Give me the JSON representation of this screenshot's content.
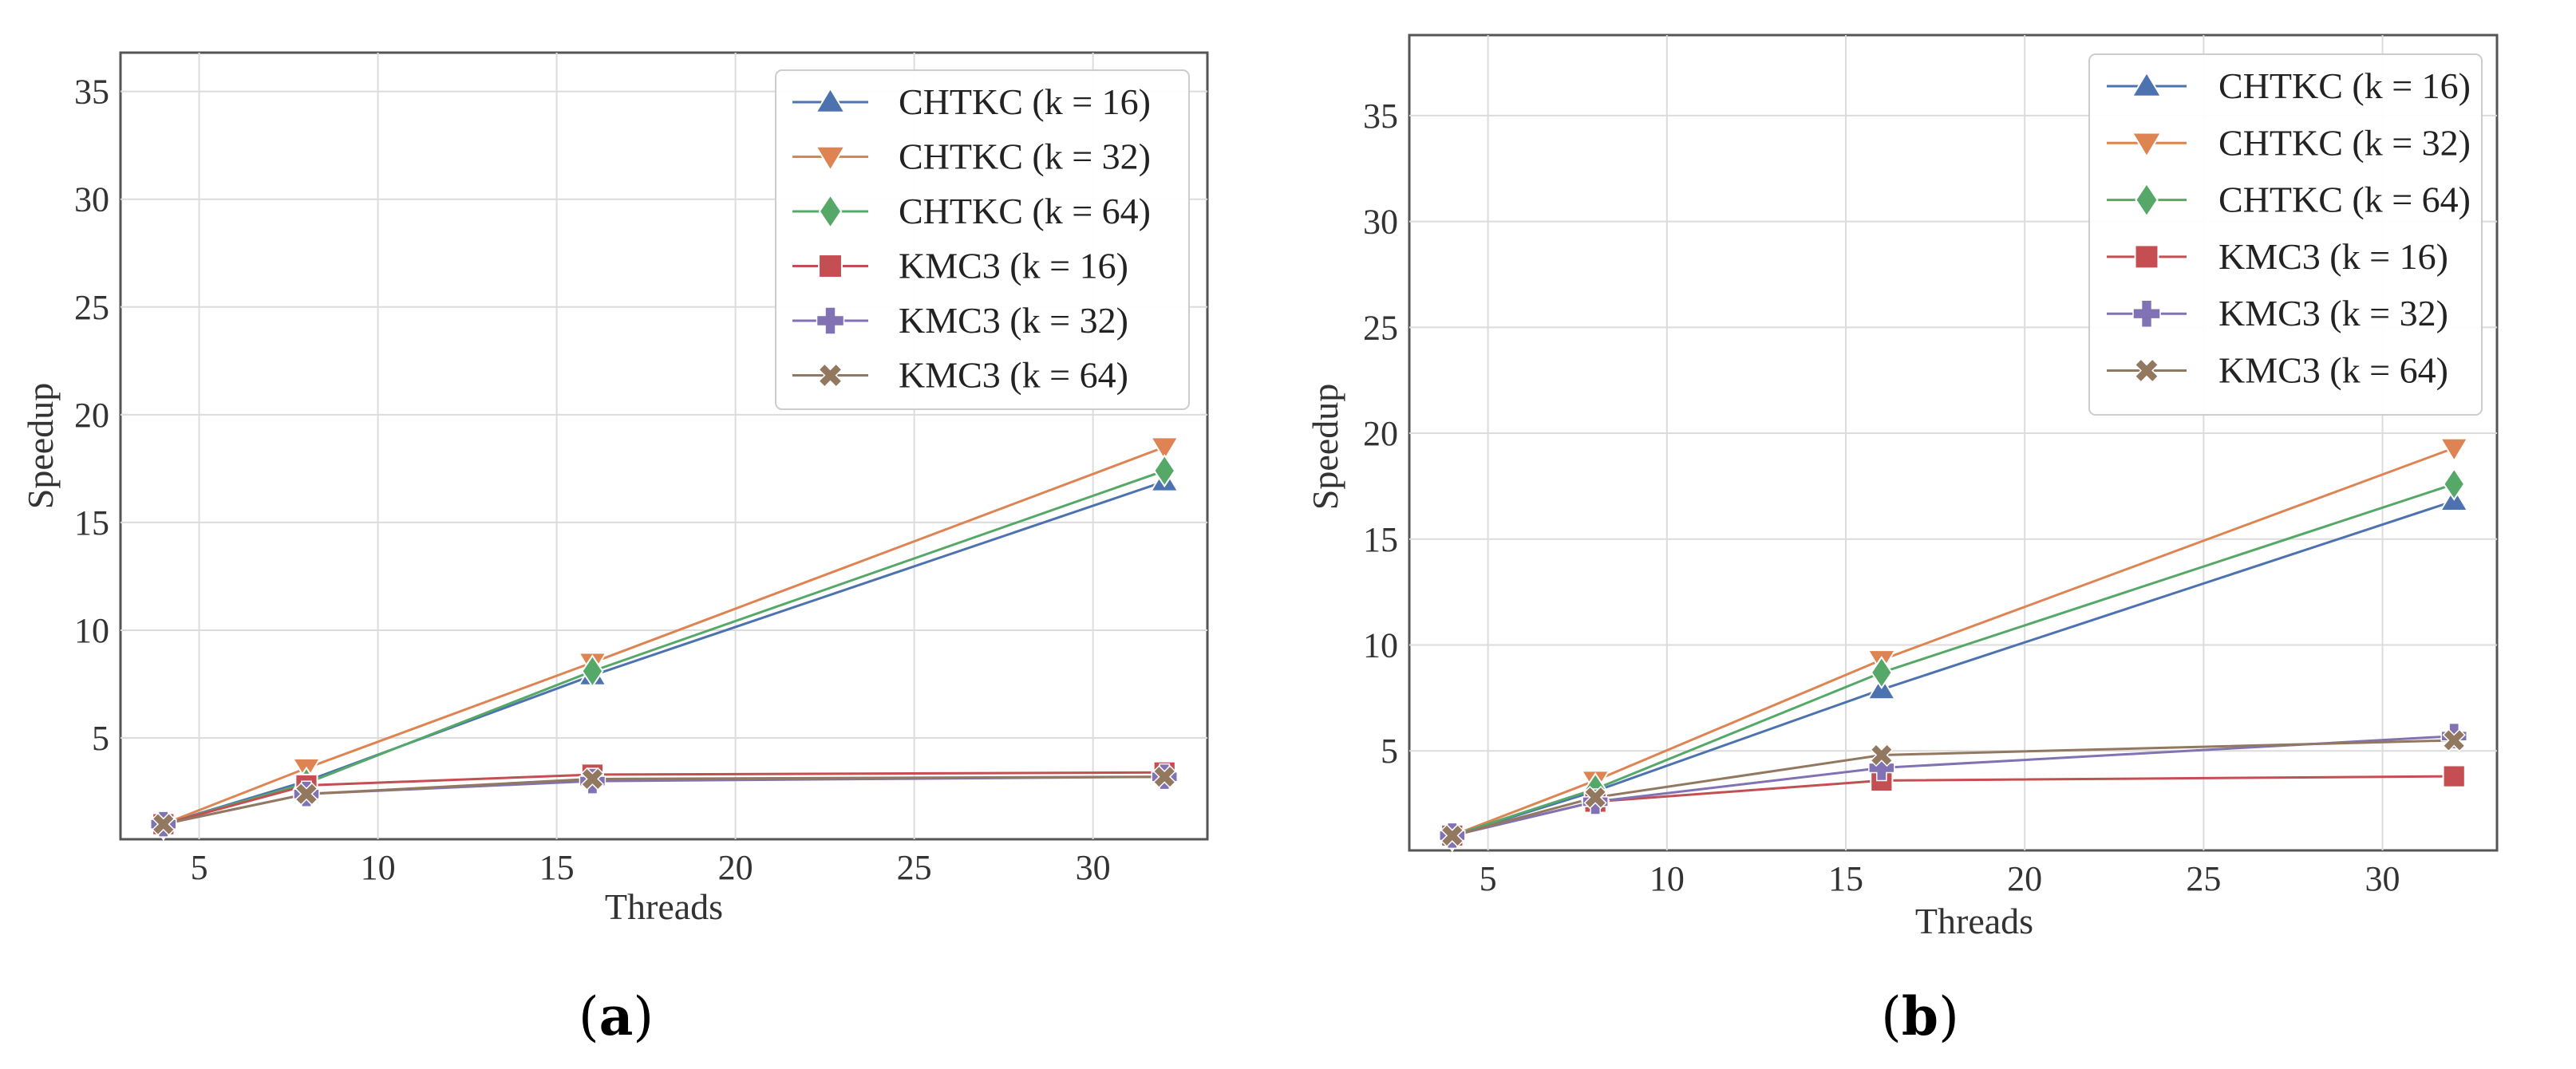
{
  "chart_data": [
    {
      "type": "line",
      "panel": "a",
      "caption_open": "(",
      "caption_letter": "a",
      "caption_close": ")",
      "xlabel": "Threads",
      "ylabel": "Speedup",
      "grid": true,
      "legend_position": "top-right",
      "xlim": [
        2.8,
        33.2
      ],
      "ylim": [
        0.3,
        36.8
      ],
      "xticks": [
        5,
        10,
        15,
        20,
        25,
        30
      ],
      "yticks": [
        5,
        10,
        15,
        20,
        25,
        30,
        35
      ],
      "x": [
        4,
        8,
        16,
        32
      ],
      "series": [
        {
          "name": "CHTKC (k = 16)",
          "marker": "triangle-up",
          "color": "#4C72B0",
          "values": [
            1.0,
            3.0,
            7.9,
            16.9
          ]
        },
        {
          "name": "CHTKC (k = 32)",
          "marker": "triangle-down",
          "color": "#DD8452",
          "values": [
            1.0,
            3.6,
            8.5,
            18.5
          ]
        },
        {
          "name": "CHTKC (k = 64)",
          "marker": "diamond",
          "color": "#55A868",
          "values": [
            1.0,
            2.9,
            8.1,
            17.4
          ]
        },
        {
          "name": "KMC3 (k = 16)",
          "marker": "square",
          "color": "#C44E52",
          "values": [
            1.0,
            2.8,
            3.3,
            3.4
          ]
        },
        {
          "name": "KMC3 (k = 32)",
          "marker": "plus",
          "color": "#8172B3",
          "values": [
            1.0,
            2.4,
            3.0,
            3.2
          ]
        },
        {
          "name": "KMC3 (k = 64)",
          "marker": "x",
          "color": "#937860",
          "values": [
            1.0,
            2.4,
            3.1,
            3.2
          ]
        }
      ]
    },
    {
      "type": "line",
      "panel": "b",
      "caption_open": "(",
      "caption_letter": "b",
      "caption_close": ")",
      "xlabel": "Threads",
      "ylabel": "Speedup",
      "grid": true,
      "legend_position": "top-right",
      "xlim": [
        2.8,
        33.2
      ],
      "ylim": [
        0.3,
        38.8
      ],
      "xticks": [
        5,
        10,
        15,
        20,
        25,
        30
      ],
      "yticks": [
        5,
        10,
        15,
        20,
        25,
        30,
        35
      ],
      "x": [
        4,
        8,
        16,
        32
      ],
      "series": [
        {
          "name": "CHTKC (k = 16)",
          "marker": "triangle-up",
          "color": "#4C72B0",
          "values": [
            1.0,
            3.1,
            7.9,
            16.8
          ]
        },
        {
          "name": "CHTKC (k = 32)",
          "marker": "triangle-down",
          "color": "#DD8452",
          "values": [
            1.0,
            3.6,
            9.3,
            19.3
          ]
        },
        {
          "name": "CHTKC (k = 64)",
          "marker": "diamond",
          "color": "#55A868",
          "values": [
            1.0,
            3.2,
            8.7,
            17.6
          ]
        },
        {
          "name": "KMC3 (k = 16)",
          "marker": "square",
          "color": "#C44E52",
          "values": [
            1.0,
            2.6,
            3.6,
            3.8
          ]
        },
        {
          "name": "KMC3 (k = 32)",
          "marker": "plus",
          "color": "#8172B3",
          "values": [
            1.0,
            2.6,
            4.2,
            5.7
          ]
        },
        {
          "name": "KMC3 (k = 64)",
          "marker": "x",
          "color": "#937860",
          "values": [
            1.0,
            2.8,
            4.8,
            5.5
          ]
        }
      ]
    }
  ]
}
